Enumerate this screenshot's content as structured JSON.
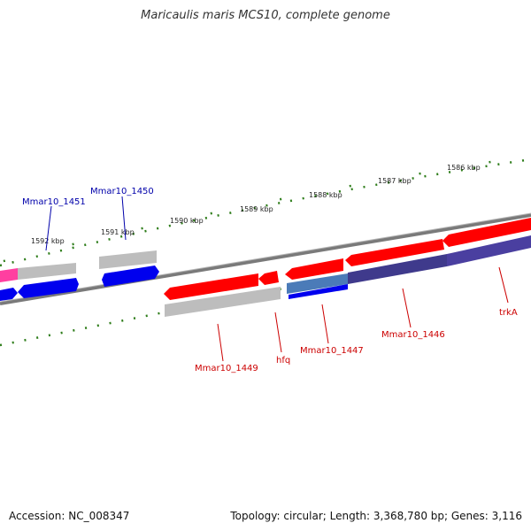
{
  "map": {
    "title": "Maricaulis maris MCS10, complete genome",
    "accession": "Accession: NC_008347",
    "summary": "Topology: circular; Length: 3,368,780 bp; Genes: 3,116"
  },
  "colors": {
    "forward_gene": "#ff0000",
    "reverse_gene": "#0000ee",
    "cds": "#b8b8b8",
    "backbone": "#8a8a8a",
    "tick": "#2e7d1a",
    "forward_label": "#cc0000",
    "reverse_label": "#0000aa"
  },
  "scale": {
    "unit": "kbp",
    "labels": [
      "1586 kbp",
      "1587 kbp",
      "1588 kbp",
      "1589 kbp",
      "1590 kbp",
      "1591 kbp",
      "1592 kbp"
    ]
  },
  "genes": [
    {
      "name": "trkA",
      "strand": "forward"
    },
    {
      "name": "Mmar10_1446",
      "strand": "forward"
    },
    {
      "name": "Mmar10_1447",
      "strand": "forward"
    },
    {
      "name": "hfq",
      "strand": "forward"
    },
    {
      "name": "Mmar10_1449",
      "strand": "forward"
    },
    {
      "name": "Mmar10_1450",
      "strand": "reverse"
    },
    {
      "name": "Mmar10_1451",
      "strand": "reverse"
    }
  ]
}
